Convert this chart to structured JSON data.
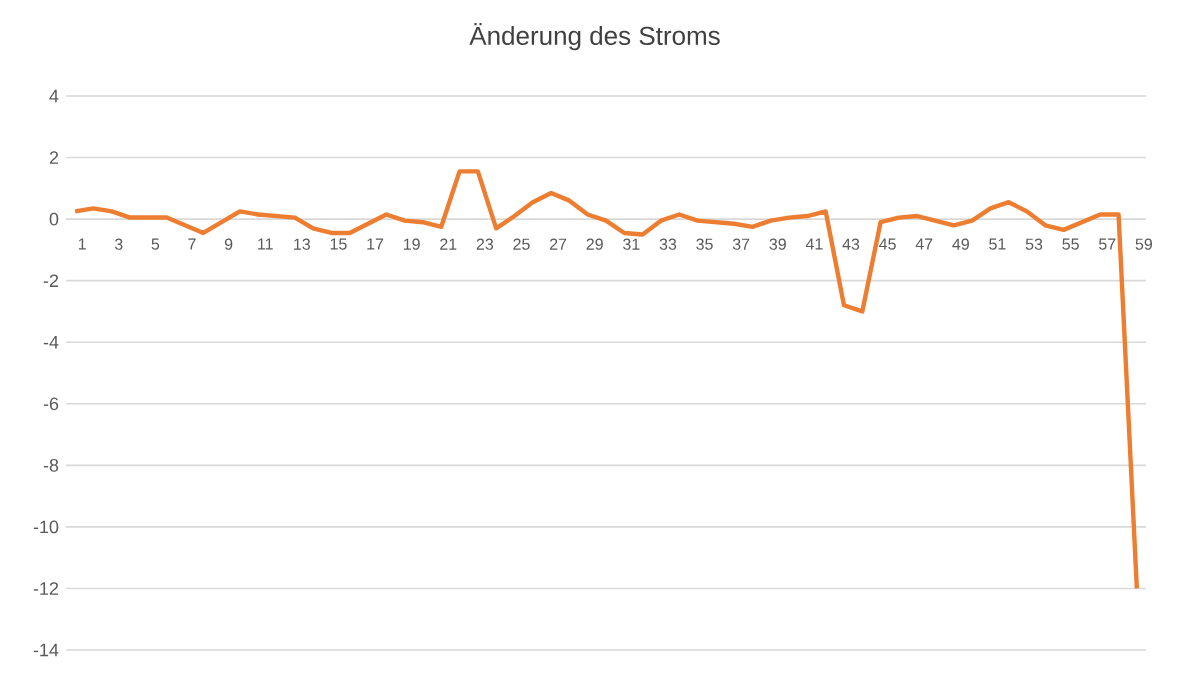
{
  "chart_data": {
    "type": "line",
    "title": "Änderung des Stroms",
    "categories": [
      "1",
      null,
      "3",
      null,
      "5",
      null,
      "7",
      null,
      "9",
      null,
      "11",
      null,
      "13",
      null,
      "15",
      null,
      "17",
      null,
      "19",
      null,
      "21",
      null,
      "23",
      null,
      "25",
      null,
      "27",
      null,
      "29",
      null,
      "31",
      null,
      "33",
      null,
      "35",
      null,
      "37",
      null,
      "39",
      null,
      "41",
      null,
      "43",
      null,
      "45",
      null,
      "47",
      null,
      "49",
      null,
      "51",
      null,
      "53",
      null,
      "55",
      null,
      "57",
      null,
      "59"
    ],
    "series": [
      {
        "color": "#ed7d31",
        "values": [
          0.25,
          0.35,
          0.25,
          0.05,
          0.05,
          0.05,
          -0.2,
          -0.45,
          -0.1,
          0.25,
          0.15,
          0.1,
          0.05,
          -0.3,
          -0.45,
          -0.45,
          -0.15,
          0.15,
          -0.05,
          -0.1,
          -0.25,
          1.55,
          1.55,
          -0.3,
          0.1,
          0.55,
          0.85,
          0.6,
          0.15,
          -0.05,
          -0.45,
          -0.5,
          -0.05,
          0.15,
          -0.05,
          -0.1,
          -0.15,
          -0.25,
          -0.05,
          0.05,
          0.1,
          0.25,
          -2.8,
          -3.0,
          -0.1,
          0.05,
          0.1,
          -0.05,
          -0.2,
          -0.05,
          0.35,
          0.55,
          0.25,
          -0.2,
          -0.35,
          -0.1,
          0.15,
          0.15,
          -12
        ]
      }
    ],
    "ylim": [
      -14,
      4
    ],
    "yticks": [
      -14,
      -12,
      -10,
      -8,
      -6,
      -4,
      -2,
      0,
      2,
      4
    ],
    "grid": "y",
    "marker": "none",
    "line_style": "solid"
  }
}
